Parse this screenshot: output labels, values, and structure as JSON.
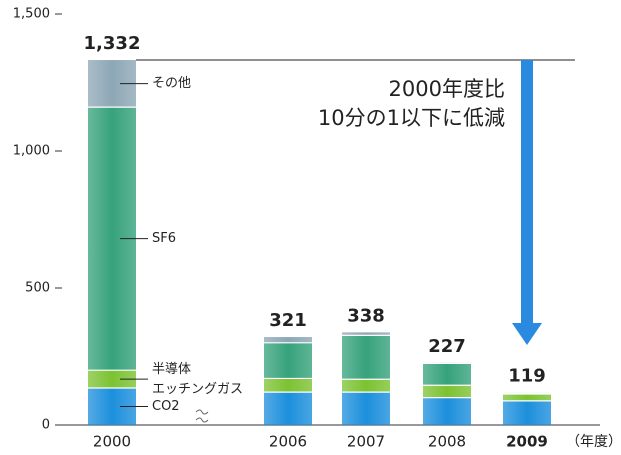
{
  "chart_data": {
    "type": "stacked-bar",
    "categories": [
      "2000",
      "2006",
      "2007",
      "2008",
      "2009"
    ],
    "series": [
      {
        "name": "CO2",
        "color": "#1c8fdc",
        "values": [
          135,
          120,
          120,
          100,
          88
        ]
      },
      {
        "name": "半導体\nエッチングガス",
        "color": "#7cc232",
        "values": [
          65,
          50,
          47,
          45,
          25
        ]
      },
      {
        "name": "SF6",
        "color": "#36a27c",
        "values": [
          960,
          130,
          160,
          80,
          4
        ]
      },
      {
        "name": "その他",
        "color": "#8da7b6",
        "values": [
          172,
          21,
          11,
          2,
          2
        ]
      }
    ],
    "totals": {
      "values": [
        1332,
        321,
        338,
        227,
        119
      ],
      "value_labels": [
        "1,332",
        "321",
        "338",
        "227",
        "119"
      ]
    },
    "ylim": [
      0,
      1500
    ],
    "yticks": [
      0,
      500,
      {
        "value": 1000,
        "label": "1,000"
      },
      {
        "value": 1500,
        "label": "1,500"
      }
    ],
    "x_unit_label": "（年度）",
    "bold_category_index": 4,
    "annotation": [
      "2000年度比",
      "10分の1以下に低減"
    ],
    "annotation_color": "#1a6cc0"
  }
}
